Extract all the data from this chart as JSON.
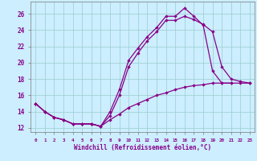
{
  "xlabel": "Windchill (Refroidissement éolien,°C)",
  "background_color": "#cceeff",
  "line_color": "#880088",
  "grid_color": "#99cccc",
  "curve1_x": [
    0,
    1,
    2,
    3,
    4,
    5,
    6,
    7,
    8,
    9,
    10,
    11,
    12,
    13,
    14,
    15,
    16,
    17,
    18,
    19,
    20,
    21
  ],
  "curve1_y": [
    15.0,
    14.0,
    13.3,
    13.0,
    12.5,
    12.5,
    12.5,
    12.2,
    14.0,
    16.7,
    20.3,
    21.8,
    23.2,
    24.3,
    25.7,
    25.7,
    26.7,
    25.7,
    24.6,
    19.0,
    17.5,
    17.5
  ],
  "curve2_x": [
    0,
    1,
    2,
    3,
    4,
    5,
    6,
    7,
    8,
    9,
    10,
    11,
    12,
    13,
    14,
    15,
    16,
    17,
    18,
    19,
    20,
    21,
    22,
    23
  ],
  "curve2_y": [
    15.0,
    14.0,
    13.3,
    13.0,
    12.5,
    12.5,
    12.5,
    12.2,
    13.5,
    16.0,
    19.5,
    21.2,
    22.7,
    23.8,
    25.2,
    25.2,
    25.7,
    25.3,
    24.7,
    23.8,
    19.5,
    18.0,
    17.7,
    17.5
  ],
  "curve3_x": [
    0,
    1,
    2,
    3,
    4,
    5,
    6,
    7,
    8,
    9,
    10,
    11,
    12,
    13,
    14,
    15,
    16,
    17,
    18,
    19,
    20,
    21,
    22,
    23
  ],
  "curve3_y": [
    15.0,
    14.0,
    13.3,
    13.0,
    12.5,
    12.5,
    12.5,
    12.2,
    13.0,
    13.7,
    14.5,
    15.0,
    15.5,
    16.0,
    16.3,
    16.7,
    17.0,
    17.2,
    17.3,
    17.5,
    17.5,
    17.5,
    17.5,
    17.5
  ],
  "ylim": [
    11.5,
    27.5
  ],
  "yticks": [
    12,
    14,
    16,
    18,
    20,
    22,
    24,
    26
  ],
  "xlim": [
    -0.5,
    23.5
  ],
  "xticks": [
    0,
    1,
    2,
    3,
    4,
    5,
    6,
    7,
    8,
    9,
    10,
    11,
    12,
    13,
    14,
    15,
    16,
    17,
    18,
    19,
    20,
    21,
    22,
    23
  ]
}
